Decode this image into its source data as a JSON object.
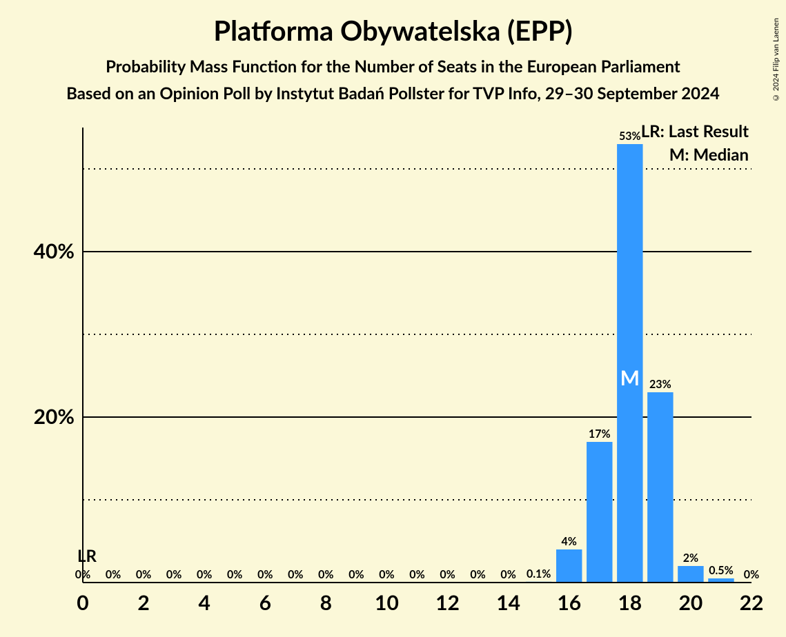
{
  "title": "Platforma Obywatelska (EPP)",
  "subtitle1": "Probability Mass Function for the Number of Seats in the European Parliament",
  "subtitle2": "Based on an Opinion Poll by Instytut Badań Pollster for TVP Info, 29–30 September 2024",
  "copyright": "© 2024 Filip van Laenen",
  "legend": {
    "lr": "LR: Last Result",
    "m": "M: Median"
  },
  "chart": {
    "type": "bar",
    "background_color": "#fbf8d8",
    "bar_color": "#3399ff",
    "axis_color": "#000000",
    "grid_solid_color": "#000000",
    "grid_dotted_color": "#000000",
    "text_color": "#000000",
    "median_text_color": "#ffffff",
    "bar_width": 0.85,
    "ylim": [
      0,
      55
    ],
    "y_ticks_major": [
      20,
      40
    ],
    "y_ticks_minor": [
      10,
      30,
      50
    ],
    "y_tick_labels": {
      "20": "20%",
      "40": "40%"
    },
    "x_range": [
      0,
      22
    ],
    "x_ticks": [
      0,
      2,
      4,
      6,
      8,
      10,
      12,
      14,
      16,
      18,
      20,
      22
    ],
    "categories": [
      0,
      1,
      2,
      3,
      4,
      5,
      6,
      7,
      8,
      9,
      10,
      11,
      12,
      13,
      14,
      15,
      16,
      17,
      18,
      19,
      20,
      21,
      22
    ],
    "values": [
      0,
      0,
      0,
      0,
      0,
      0,
      0,
      0,
      0,
      0,
      0,
      0,
      0,
      0,
      0,
      0.1,
      4,
      17,
      53,
      23,
      2,
      0.5,
      0
    ],
    "value_labels": [
      "0%",
      "0%",
      "0%",
      "0%",
      "0%",
      "0%",
      "0%",
      "0%",
      "0%",
      "0%",
      "0%",
      "0%",
      "0%",
      "0%",
      "0%",
      "0.1%",
      "4%",
      "17%",
      "53%",
      "23%",
      "2%",
      "0.5%",
      "0%"
    ],
    "lr_index": 0,
    "lr_text": "LR",
    "median_index": 18,
    "median_text": "M",
    "title_fontsize": 40,
    "subtitle_fontsize": 24,
    "axis_label_fontsize": 30,
    "bar_label_fontsize": 16,
    "legend_fontsize": 24,
    "median_fontsize": 30
  }
}
